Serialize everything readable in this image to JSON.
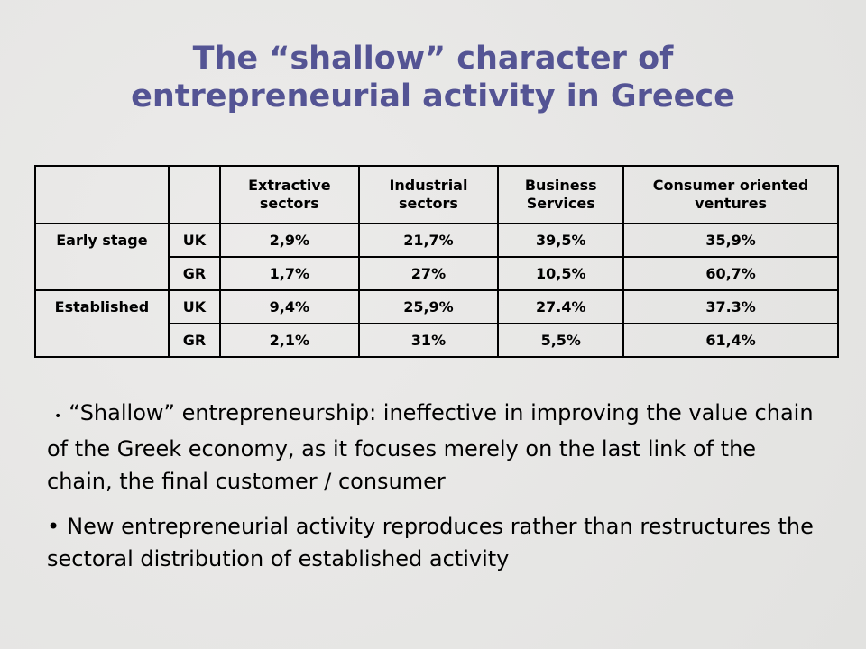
{
  "title": [
    "The “shallow” character of",
    "entrepreneurial activity in Greece"
  ],
  "table": {
    "header": [
      "Extractive sectors",
      "Industrial sectors",
      "Business Services",
      "Consumer oriented ventures"
    ],
    "groups": [
      {
        "label": "Early stage",
        "rows": [
          [
            "UK",
            "2,9%",
            "21,7%",
            "39,5%",
            "35,9%"
          ],
          [
            "GR",
            "1,7%",
            "27%",
            "10,5%",
            "60,7%"
          ]
        ]
      },
      {
        "label": "Established",
        "rows": [
          [
            "UK",
            "9,4%",
            "25,9%",
            "27.4%",
            "37.3%"
          ],
          [
            "GR",
            "2,1%",
            "31%",
            "5,5%",
            "61,4%"
          ]
        ]
      }
    ]
  },
  "bullets": [
    "“Shallow” entrepreneurship: ineffective in improving the value chain of the Greek economy, as it focuses merely on the last link of the chain, the final customer / consumer",
    "New entrepreneurial activity reproduces rather than restructures the sectoral distribution of established activity"
  ]
}
